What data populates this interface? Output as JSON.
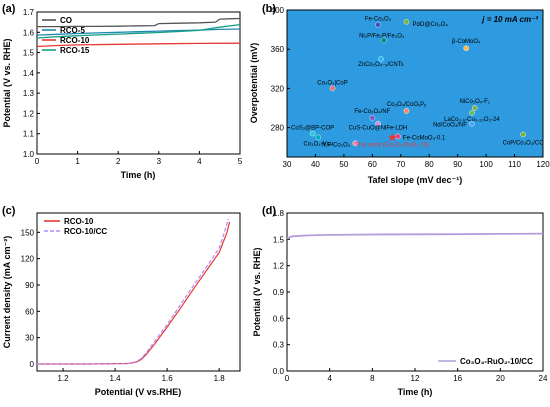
{
  "chart_data": [
    {
      "panel": "(a)",
      "type": "line",
      "xlabel": "Time (h)",
      "ylabel": "Potential (V vs. RHE)",
      "xlim": [
        0,
        5
      ],
      "ylim": [
        1.0,
        1.7
      ],
      "xticks": [
        0,
        1,
        2,
        3,
        4,
        5
      ],
      "yticks": [
        1.0,
        1.1,
        1.2,
        1.3,
        1.4,
        1.5,
        1.6,
        1.7
      ],
      "legend_position": "top-left",
      "series": [
        {
          "name": "CO",
          "color": "#555555",
          "x": [
            0,
            0.5,
            1,
            1.5,
            2,
            2.5,
            2.9,
            3.0,
            3.5,
            4.0,
            4.4,
            4.5,
            4.8,
            5.0
          ],
          "y": [
            1.628,
            1.628,
            1.629,
            1.629,
            1.63,
            1.632,
            1.633,
            1.643,
            1.645,
            1.647,
            1.65,
            1.665,
            1.667,
            1.668
          ]
        },
        {
          "name": "RCO-5",
          "color": "#1e88b4",
          "x": [
            0,
            0.5,
            1,
            1.5,
            2,
            2.5,
            3,
            3.5,
            4,
            4.5,
            5
          ],
          "y": [
            1.586,
            1.59,
            1.594,
            1.597,
            1.6,
            1.603,
            1.606,
            1.609,
            1.611,
            1.614,
            1.616
          ]
        },
        {
          "name": "RCO-10",
          "color": "#e53935",
          "x": [
            0,
            0.5,
            1,
            2,
            3,
            4,
            5
          ],
          "y": [
            1.53,
            1.535,
            1.538,
            1.541,
            1.543,
            1.545,
            1.546
          ]
        },
        {
          "name": "RCO-15",
          "color": "#16a085",
          "x": [
            0,
            0.5,
            1,
            1.5,
            2,
            2.5,
            3,
            3.5,
            4,
            4.5,
            5
          ],
          "y": [
            1.572,
            1.578,
            1.583,
            1.587,
            1.591,
            1.595,
            1.599,
            1.604,
            1.61,
            1.625,
            1.638
          ]
        }
      ]
    },
    {
      "panel": "(b)",
      "type": "scatter",
      "xlabel": "Tafel slope (mV dec⁻¹)",
      "ylabel": "Overpotential (mV)",
      "xlim": [
        30,
        120
      ],
      "ylim": [
        250,
        400
      ],
      "xticks": [
        30,
        40,
        50,
        60,
        70,
        80,
        90,
        100,
        110,
        120
      ],
      "yticks": [
        280,
        320,
        360,
        400
      ],
      "annotation": "j = 10 mA cm⁻²",
      "points": [
        {
          "label": "Fe-Co₃O₄",
          "x": 62,
          "y": 385,
          "color": "#3f51b5"
        },
        {
          "label": "PdO@Co₃O₄",
          "x": 72,
          "y": 388,
          "color": "#7cb342"
        },
        {
          "label": "Ni₂P/Fe₂P/Fe₃O₄",
          "x": 64,
          "y": 369,
          "color": "#00897b"
        },
        {
          "label": "β-CoMoO₄",
          "x": 93,
          "y": 361,
          "color": "#ffb74d"
        },
        {
          "label": "ZnCo₂O₄₋ₓ/CNTs",
          "x": 63,
          "y": 350,
          "color": "#29b6f6"
        },
        {
          "label": "Co₃O₄|CoP",
          "x": 46,
          "y": 320,
          "color": "#e57373"
        },
        {
          "label": "NiCo₂O₄-F₁",
          "x": 96,
          "y": 300,
          "color": "#7cb342"
        },
        {
          "label": "Co₃O₄/CoOₓPᵧ",
          "x": 72,
          "y": 297,
          "color": "#ff8a65"
        },
        {
          "label": "Fe-Co₃O₄/NF",
          "x": 60,
          "y": 290,
          "color": "#7e57c2"
        },
        {
          "label": "LaCo₀.₆₇Cu₀.₃₃O₃-24",
          "x": 95,
          "y": 295,
          "color": "#66bb6a"
        },
        {
          "label": "CuS-CuO@NiFe-LDH",
          "x": 62,
          "y": 284,
          "color": "#ce93d8"
        },
        {
          "label": "Nd/CoO₄/NF",
          "x": 95,
          "y": 284,
          "color": "#42a5f5"
        },
        {
          "label": "CoS₂@BP-COP",
          "x": 39,
          "y": 274,
          "color": "#26c6da"
        },
        {
          "label": "Fe-CoMoO₄-0.1",
          "x": 69,
          "y": 271,
          "color": "#ec407a"
        },
        {
          "label": "CoP/Co₃O₄/CC",
          "x": 113,
          "y": 273,
          "color": "#7cb342"
        },
        {
          "label": "Co₃O₄-Vᴄᴜ",
          "x": 41,
          "y": 270,
          "color": "#00acc1"
        },
        {
          "label": "N,F-Co₃O₄",
          "x": 54,
          "y": 264,
          "color": "#f48fb1"
        },
        {
          "label": "This work (Co₃O₄-RuO₂-10)",
          "x": 67,
          "y": 270,
          "color": "#e53935",
          "marker": "star"
        }
      ]
    },
    {
      "panel": "(c)",
      "type": "line",
      "xlabel": "Potential (V vs.RHE)",
      "ylabel": "Current density (mA cm⁻²)",
      "xlim": [
        1.1,
        1.88
      ],
      "ylim": [
        -8,
        172
      ],
      "xticks": [
        1.2,
        1.4,
        1.6,
        1.8
      ],
      "yticks": [
        0,
        30,
        60,
        90,
        120,
        150
      ],
      "legend_position": "top-left",
      "series": [
        {
          "name": "RCO-10",
          "color": "#e53935",
          "dash": false,
          "x": [
            1.1,
            1.3,
            1.45,
            1.48,
            1.5,
            1.52,
            1.55,
            1.6,
            1.65,
            1.7,
            1.75,
            1.8,
            1.83,
            1.84
          ],
          "y": [
            0,
            0,
            0.5,
            2,
            5,
            11,
            22,
            42,
            63,
            85,
            106,
            127,
            150,
            162
          ]
        },
        {
          "name": "RCO-10/CC",
          "color": "#b388ff",
          "dash": true,
          "x": [
            1.1,
            1.3,
            1.45,
            1.48,
            1.5,
            1.52,
            1.55,
            1.6,
            1.65,
            1.7,
            1.75,
            1.8,
            1.82,
            1.835
          ],
          "y": [
            0,
            0,
            0.6,
            2.5,
            6,
            13,
            25,
            45,
            67,
            89,
            110,
            132,
            150,
            165
          ]
        }
      ]
    },
    {
      "panel": "(d)",
      "type": "line",
      "xlabel": "Time (h)",
      "ylabel": "Potential (V vs. RHE)",
      "xlim": [
        0,
        24
      ],
      "ylim": [
        0,
        1.8
      ],
      "xticks": [
        0,
        4,
        8,
        12,
        16,
        20,
        24
      ],
      "yticks": [
        0,
        0.3,
        0.6,
        0.9,
        1.2,
        1.5,
        1.8
      ],
      "legend_position": "bottom-right",
      "series": [
        {
          "name": "Co₃O₄-RuO₂-10/CC",
          "color": "#b39ddb",
          "x": [
            0,
            0.5,
            2,
            4,
            8,
            12,
            16,
            20,
            24
          ],
          "y": [
            1.51,
            1.535,
            1.545,
            1.55,
            1.555,
            1.557,
            1.559,
            1.562,
            1.565
          ]
        }
      ]
    }
  ],
  "colors": {
    "axis": "#000000",
    "panel_b_background": "#2e9be0"
  }
}
